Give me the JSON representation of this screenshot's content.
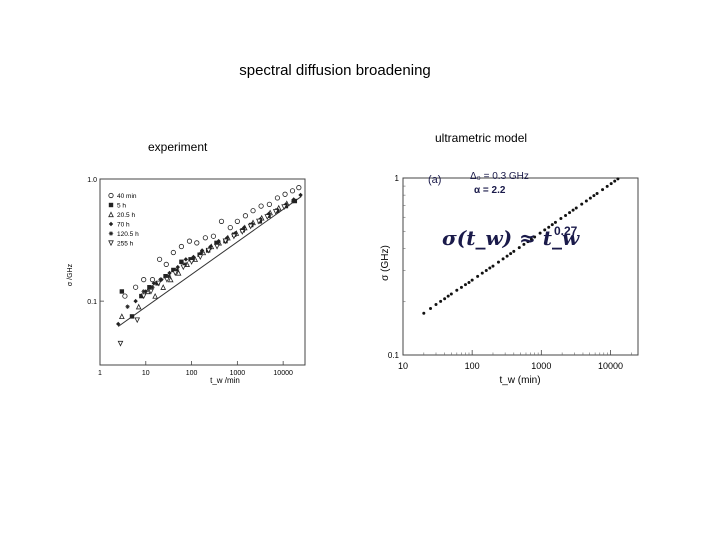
{
  "slide": {
    "title": "spectral diffusion broadening",
    "left_label": "experiment",
    "right_label": "ultrametric model"
  },
  "chart_data": [
    {
      "type": "scatter",
      "title": "",
      "xlabel": "t_w /min",
      "ylabel": "σ /GHz",
      "xscale": "log",
      "yscale": "log",
      "xlim": [
        1,
        30000
      ],
      "ylim": [
        0.03,
        1.0
      ],
      "xticks": [
        "1",
        "10",
        "100",
        "1000",
        "10000"
      ],
      "yticks": [
        "1.0",
        "0.1"
      ],
      "legend_position": "top-left",
      "legend": [
        "40 min",
        "5 h",
        "20.5 h",
        "70 h",
        "120.5 h",
        "255 h"
      ],
      "colors": {
        "points": "#222222",
        "fit": "#333333",
        "frame": "#444444"
      },
      "fit_line": {
        "x": [
          2.5,
          25000
        ],
        "y": [
          0.062,
          0.72
        ]
      },
      "series": [
        {
          "name": "40 min",
          "marker": "circle-open",
          "x": [
            3.5,
            6,
            9,
            14,
            20,
            28,
            40,
            60,
            90,
            130,
            200,
            300,
            450,
            700,
            1000,
            1500,
            2200,
            3300,
            5000,
            7500,
            11000,
            16000,
            22000
          ],
          "y": [
            0.11,
            0.13,
            0.15,
            0.15,
            0.22,
            0.2,
            0.25,
            0.28,
            0.31,
            0.3,
            0.33,
            0.34,
            0.45,
            0.4,
            0.45,
            0.5,
            0.55,
            0.6,
            0.62,
            0.7,
            0.75,
            0.8,
            0.85
          ]
        },
        {
          "name": "5 h",
          "marker": "square-filled",
          "x": [
            3,
            5,
            8,
            12,
            18,
            27,
            40,
            60,
            95,
            150,
            230,
            350,
            550,
            850,
            1300,
            2000,
            3100,
            4800,
            7400,
            11500,
            18000
          ],
          "y": [
            0.12,
            0.075,
            0.11,
            0.13,
            0.14,
            0.16,
            0.18,
            0.21,
            0.22,
            0.24,
            0.26,
            0.3,
            0.31,
            0.35,
            0.38,
            0.42,
            0.45,
            0.5,
            0.55,
            0.6,
            0.66
          ]
        },
        {
          "name": "20.5 h",
          "marker": "triangle-open",
          "x": [
            3,
            7,
            11,
            16,
            24,
            35,
            52,
            80,
            120,
            180,
            270,
            400,
            620,
            950,
            1450,
            2200,
            3400,
            5200,
            8000,
            12000
          ],
          "y": [
            0.075,
            0.09,
            0.12,
            0.11,
            0.13,
            0.15,
            0.17,
            0.2,
            0.22,
            0.25,
            0.28,
            0.3,
            0.33,
            0.36,
            0.4,
            0.44,
            0.48,
            0.53,
            0.58,
            0.63
          ]
        },
        {
          "name": "70 h",
          "marker": "diamond-filled",
          "x": [
            2.5,
            6,
            10,
            15,
            22,
            33,
            50,
            75,
            110,
            170,
            260,
            390,
            600,
            900,
            1400,
            2100,
            3200,
            4900,
            7500,
            11500,
            17000,
            24000
          ],
          "y": [
            0.065,
            0.1,
            0.12,
            0.14,
            0.15,
            0.17,
            0.19,
            0.22,
            0.23,
            0.26,
            0.28,
            0.31,
            0.33,
            0.36,
            0.4,
            0.43,
            0.47,
            0.52,
            0.56,
            0.62,
            0.68,
            0.74
          ]
        },
        {
          "name": "120.5 h",
          "marker": "star",
          "x": [
            4,
            9,
            14,
            21,
            32,
            48,
            72,
            108,
            165,
            250,
            380,
            580,
            880,
            1350,
            2050,
            3100,
            4700,
            7200,
            11000,
            16500
          ],
          "y": [
            0.09,
            0.12,
            0.13,
            0.15,
            0.16,
            0.18,
            0.2,
            0.22,
            0.25,
            0.27,
            0.3,
            0.32,
            0.35,
            0.38,
            0.42,
            0.46,
            0.5,
            0.55,
            0.6,
            0.66
          ]
        },
        {
          "name": "255 h",
          "marker": "triangle-down-open",
          "x": [
            2.8,
            6.5,
            9,
            13,
            19,
            29,
            44,
            66,
            100,
            155,
            235,
            360,
            550,
            840,
            1280,
            1950,
            2950,
            4500,
            6900,
            10500
          ],
          "y": [
            0.045,
            0.07,
            0.11,
            0.12,
            0.14,
            0.15,
            0.17,
            0.19,
            0.21,
            0.23,
            0.26,
            0.28,
            0.31,
            0.34,
            0.37,
            0.41,
            0.45,
            0.49,
            0.54,
            0.59
          ]
        }
      ]
    },
    {
      "type": "scatter",
      "title": "",
      "panel_label": "(a)",
      "xlabel": "t_w (min)",
      "ylabel": "σ (GHz)",
      "xscale": "log",
      "yscale": "log",
      "xlim": [
        10,
        25000
      ],
      "ylim": [
        0.1,
        1.0
      ],
      "xticks": [
        "10",
        "100",
        "1000",
        "10000"
      ],
      "yticks": [
        "1",
        "0.1"
      ],
      "annotations": {
        "delta": "Δ₀ = 0.3 GHz",
        "alpha": "α = 2.2",
        "formula_main": "σ(t_w) ≈ t_w",
        "formula_exp": "0.27"
      },
      "colors": {
        "points": "#111111",
        "frame": "#444444",
        "annotation": "#1a1a4a"
      },
      "series": [
        {
          "power_law": {
            "prefactor": 0.077,
            "exponent": 0.27
          },
          "x": [
            20,
            25,
            30,
            35,
            40,
            45,
            50,
            60,
            70,
            80,
            90,
            100,
            120,
            140,
            160,
            180,
            200,
            240,
            280,
            320,
            360,
            400,
            480,
            560,
            640,
            720,
            800,
            960,
            1120,
            1280,
            1440,
            1600,
            1920,
            2240,
            2560,
            2880,
            3200,
            3840,
            4480,
            5120,
            5760,
            6400,
            7680,
            8960,
            10240,
            11520,
            12800,
            15360,
            17920,
            20480,
            23040
          ],
          "y": [
            0.172,
            0.183,
            0.193,
            0.201,
            0.208,
            0.215,
            0.221,
            0.232,
            0.241,
            0.25,
            0.257,
            0.265,
            0.278,
            0.29,
            0.3,
            0.31,
            0.318,
            0.335,
            0.349,
            0.362,
            0.374,
            0.385,
            0.404,
            0.422,
            0.437,
            0.451,
            0.464,
            0.488,
            0.509,
            0.527,
            0.545,
            0.561,
            0.59,
            0.614,
            0.637,
            0.658,
            0.677,
            0.712,
            0.742,
            0.77,
            0.795,
            0.818,
            0.86,
            0.897,
            0.93,
            0.96,
            0.988,
            1.0,
            1.0,
            1.0,
            1.0
          ]
        }
      ]
    }
  ]
}
